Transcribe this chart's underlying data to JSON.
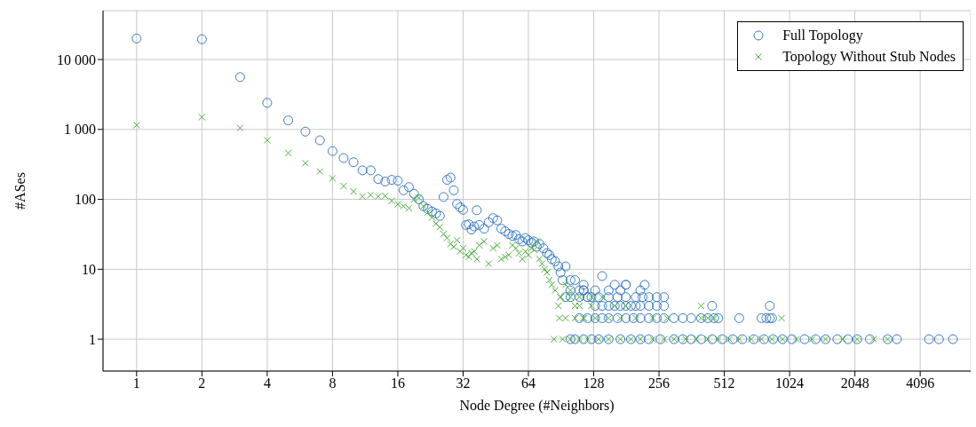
{
  "chart_data": {
    "type": "scatter",
    "xlabel": "Node Degree (#Neighbors)",
    "ylabel": "#ASes",
    "log": "xy",
    "grid": true,
    "legend": "top right",
    "xlim": [
      0.7,
      7000
    ],
    "xticks": [
      1,
      2,
      4,
      8,
      16,
      32,
      64,
      128,
      256,
      512,
      1024,
      2048,
      4096
    ],
    "ylim": [
      0.35,
      50000
    ],
    "yticks": [
      1,
      10,
      100,
      {
        "value": 1000,
        "label": "1 000"
      },
      {
        "value": 10000,
        "label": "10 000"
      }
    ],
    "series": [
      {
        "name": "Full Topology",
        "color": "#3b7dc4",
        "marker": "circle",
        "x": [
          1,
          2,
          3,
          4,
          5,
          6,
          7,
          8,
          9,
          10,
          11,
          12,
          13,
          14,
          15,
          16,
          17,
          18,
          19,
          20,
          21,
          22,
          23,
          24,
          25,
          26,
          27,
          28,
          29,
          30,
          31,
          32,
          33,
          34,
          35,
          36,
          37,
          38,
          40,
          42,
          44,
          46,
          48,
          50,
          52,
          54,
          56,
          58,
          60,
          62,
          64,
          66,
          68,
          70,
          72,
          75,
          78,
          80,
          82,
          85,
          88,
          90,
          92,
          95,
          100,
          105,
          110,
          115,
          120,
          125,
          130,
          140,
          150,
          160,
          170,
          180,
          190,
          200,
          210,
          230,
          250,
          270,
          110,
          120,
          130,
          140,
          150,
          165,
          180,
          195,
          210,
          230,
          250,
          270,
          300,
          330,
          360,
          400,
          430,
          460,
          480,
          600,
          760,
          800,
          830,
          850,
          100,
          105,
          115,
          125,
          135,
          150,
          170,
          190,
          210,
          230,
          260,
          300,
          330,
          360,
          400,
          450,
          500,
          560,
          620,
          700,
          780,
          860,
          950,
          1050,
          1200,
          1350,
          1500,
          1700,
          1900,
          2100,
          2400,
          2900,
          3200,
          4500,
          5000,
          5800,
          95,
          100,
          110,
          120,
          135,
          150,
          165,
          180,
          200,
          215,
          230,
          250,
          270,
          450,
          830,
          100,
          115,
          130,
          150,
          170,
          180,
          220,
          115,
          140,
          160,
          180,
          210
        ],
        "values": [
          20000,
          19500,
          5600,
          2400,
          1350,
          930,
          700,
          490,
          390,
          340,
          260,
          260,
          195,
          180,
          190,
          185,
          135,
          150,
          120,
          100,
          80,
          73,
          67,
          63,
          58,
          108,
          190,
          205,
          135,
          86,
          77,
          71,
          43,
          44,
          37,
          41,
          70,
          43,
          38,
          47,
          54,
          50,
          38,
          35,
          32,
          30,
          31,
          27,
          25,
          28,
          26,
          24,
          25,
          21,
          23,
          20,
          17,
          16,
          14,
          13,
          11,
          9,
          7,
          11,
          7,
          7,
          5,
          5,
          4,
          4,
          3,
          3,
          3,
          3,
          3,
          3,
          3,
          3,
          3,
          3,
          3,
          3,
          2,
          2,
          2,
          2,
          2,
          2,
          2,
          2,
          2,
          2,
          2,
          2,
          2,
          2,
          2,
          2,
          2,
          2,
          2,
          2,
          2,
          2,
          2,
          2,
          1,
          1,
          1,
          1,
          1,
          1,
          1,
          1,
          1,
          1,
          1,
          1,
          1,
          1,
          1,
          1,
          1,
          1,
          1,
          1,
          1,
          1,
          1,
          1,
          1,
          1,
          1,
          1,
          1,
          1,
          1,
          1,
          1,
          1,
          1,
          1,
          4,
          4,
          4,
          4,
          4,
          4,
          4,
          4,
          4,
          4,
          4,
          4,
          4,
          3,
          3,
          5,
          5,
          5,
          5,
          5,
          6,
          6,
          6,
          8,
          6,
          6,
          5
        ]
      },
      {
        "name": "Topology Without Stub Nodes",
        "color": "#4daf3c",
        "marker": "cross",
        "x": [
          1,
          2,
          3,
          4,
          5,
          6,
          7,
          8,
          9,
          10,
          11,
          12,
          13,
          14,
          15,
          16,
          17,
          18,
          19,
          20,
          21,
          22,
          23,
          24,
          25,
          26,
          27,
          28,
          29,
          30,
          31,
          32,
          33,
          34,
          35,
          36,
          37,
          38,
          40,
          42,
          44,
          46,
          48,
          50,
          52,
          54,
          56,
          58,
          60,
          62,
          64,
          66,
          68,
          70,
          72,
          74,
          76,
          78,
          80,
          82,
          85,
          88,
          90,
          95,
          100,
          105,
          110,
          115,
          125,
          84,
          92,
          100,
          110,
          120,
          135,
          150,
          170,
          190,
          210,
          240,
          270,
          300,
          340,
          380,
          430,
          480,
          540,
          600,
          680,
          760,
          850,
          950,
          1100,
          1300,
          1500,
          1800,
          2100,
          2500,
          2900,
          89,
          95,
          105,
          115,
          130,
          150,
          170,
          200,
          240,
          280,
          400,
          430,
          460,
          940,
          90,
          100,
          110,
          125,
          140,
          160,
          180,
          400
        ],
        "values": [
          1150,
          1500,
          1050,
          700,
          460,
          330,
          250,
          200,
          155,
          130,
          110,
          115,
          110,
          112,
          95,
          85,
          80,
          75,
          100,
          105,
          80,
          65,
          55,
          45,
          40,
          32,
          28,
          23,
          21,
          26,
          18,
          20,
          16,
          15,
          17,
          18,
          14,
          22,
          25,
          12,
          20,
          22,
          14,
          15,
          16,
          22,
          20,
          17,
          14,
          18,
          16,
          20,
          19,
          25,
          14,
          12,
          10,
          9,
          7,
          6,
          5,
          3,
          4,
          6,
          5,
          3,
          3,
          2,
          3,
          1,
          1,
          1,
          1,
          1,
          1,
          1,
          1,
          1,
          1,
          1,
          1,
          1,
          1,
          1,
          1,
          1,
          1,
          1,
          1,
          1,
          1,
          1,
          1,
          1,
          1,
          1,
          1,
          1,
          1,
          2,
          2,
          2,
          2,
          2,
          2,
          2,
          2,
          2,
          2,
          2,
          2,
          2,
          2,
          4,
          4,
          4,
          4,
          4,
          3,
          3,
          3
        ]
      }
    ]
  }
}
